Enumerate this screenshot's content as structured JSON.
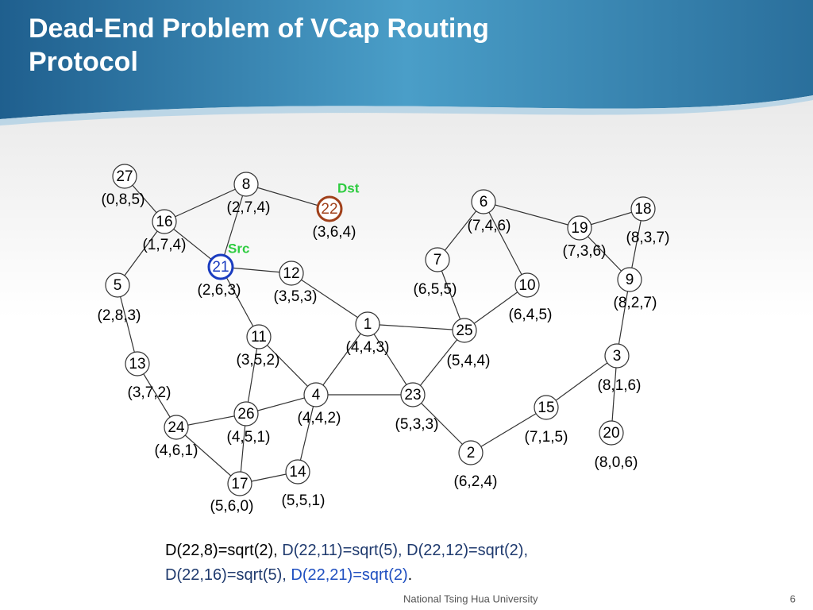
{
  "header": {
    "title": "Dead-End Problem of VCap Routing Protocol"
  },
  "graph": {
    "nodes": [
      {
        "label": "27",
        "coord": "(0,8,5)"
      },
      {
        "label": "8",
        "coord": "(2,7,4)"
      },
      {
        "label": "22",
        "coord": "(3,6,4)"
      },
      {
        "label": "16",
        "coord": "(1,7,4)"
      },
      {
        "label": "21",
        "coord": "(2,6,3)"
      },
      {
        "label": "12",
        "coord": "(3,5,3)"
      },
      {
        "label": "5",
        "coord": "(2,8,3)"
      },
      {
        "label": "11",
        "coord": "(3,5,2)"
      },
      {
        "label": "1",
        "coord": "(4,4,3)"
      },
      {
        "label": "13",
        "coord": "(3,7,2)"
      },
      {
        "label": "4",
        "coord": "(4,4,2)"
      },
      {
        "label": "23",
        "coord": "(5,3,3)"
      },
      {
        "label": "26",
        "coord": "(4,5,1)"
      },
      {
        "label": "24",
        "coord": "(4,6,1)"
      },
      {
        "label": "17",
        "coord": "(5,6,0)"
      },
      {
        "label": "14",
        "coord": "(5,5,1)"
      },
      {
        "label": "6",
        "coord": "(7,4,6)"
      },
      {
        "label": "7",
        "coord": "(6,5,5)"
      },
      {
        "label": "10",
        "coord": "(6,4,5)"
      },
      {
        "label": "25",
        "coord": "(5,4,4)"
      },
      {
        "label": "19",
        "coord": "(7,3,6)"
      },
      {
        "label": "18",
        "coord": "(8,3,7)"
      },
      {
        "label": "9",
        "coord": "(8,2,7)"
      },
      {
        "label": "3",
        "coord": "(8,1,6)"
      },
      {
        "label": "15",
        "coord": "(7,1,5)"
      },
      {
        "label": "20",
        "coord": "(8,0,6)"
      },
      {
        "label": "2",
        "coord": "(6,2,4)"
      }
    ],
    "dst_label": "Dst",
    "src_label": "Src"
  },
  "formula": [
    [
      {
        "text": "D(22,8)=sqrt(2), ",
        "color": "#000000"
      },
      {
        "text": "D(22,11)=sqrt(5), ",
        "color": "#1f3a6e"
      },
      {
        "text": "D(22,12)=sqrt(2),",
        "color": "#1f3a6e"
      }
    ],
    [
      {
        "text": "D(22,16)=sqrt(5), ",
        "color": "#1f3a6e"
      },
      {
        "text": "D(22,21)=sqrt(2)",
        "color": "#1f4fc0"
      },
      {
        "text": ".",
        "color": "#000000"
      }
    ]
  ],
  "footer": {
    "org": "National Tsing Hua University",
    "page": "6"
  }
}
